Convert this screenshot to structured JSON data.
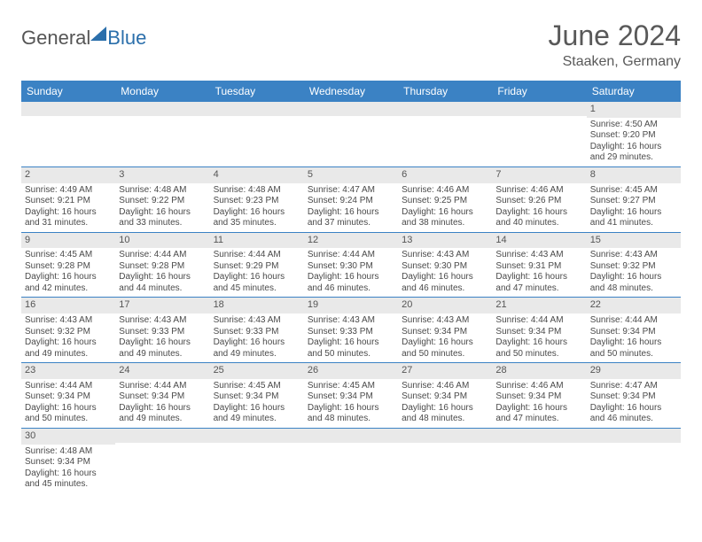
{
  "brand": {
    "text1": "General",
    "text2": "Blue"
  },
  "title": "June 2024",
  "location": "Staaken, Germany",
  "colors": {
    "header_bg": "#3b82c4",
    "daynum_bg": "#e9e9e9",
    "accent": "#2b6fab"
  },
  "day_headers": [
    "Sunday",
    "Monday",
    "Tuesday",
    "Wednesday",
    "Thursday",
    "Friday",
    "Saturday"
  ],
  "weeks": [
    [
      {
        "blank": true
      },
      {
        "blank": true
      },
      {
        "blank": true
      },
      {
        "blank": true
      },
      {
        "blank": true
      },
      {
        "blank": true
      },
      {
        "day": "1",
        "sunrise": "Sunrise: 4:50 AM",
        "sunset": "Sunset: 9:20 PM",
        "daylight": "Daylight: 16 hours and 29 minutes."
      }
    ],
    [
      {
        "day": "2",
        "sunrise": "Sunrise: 4:49 AM",
        "sunset": "Sunset: 9:21 PM",
        "daylight": "Daylight: 16 hours and 31 minutes."
      },
      {
        "day": "3",
        "sunrise": "Sunrise: 4:48 AM",
        "sunset": "Sunset: 9:22 PM",
        "daylight": "Daylight: 16 hours and 33 minutes."
      },
      {
        "day": "4",
        "sunrise": "Sunrise: 4:48 AM",
        "sunset": "Sunset: 9:23 PM",
        "daylight": "Daylight: 16 hours and 35 minutes."
      },
      {
        "day": "5",
        "sunrise": "Sunrise: 4:47 AM",
        "sunset": "Sunset: 9:24 PM",
        "daylight": "Daylight: 16 hours and 37 minutes."
      },
      {
        "day": "6",
        "sunrise": "Sunrise: 4:46 AM",
        "sunset": "Sunset: 9:25 PM",
        "daylight": "Daylight: 16 hours and 38 minutes."
      },
      {
        "day": "7",
        "sunrise": "Sunrise: 4:46 AM",
        "sunset": "Sunset: 9:26 PM",
        "daylight": "Daylight: 16 hours and 40 minutes."
      },
      {
        "day": "8",
        "sunrise": "Sunrise: 4:45 AM",
        "sunset": "Sunset: 9:27 PM",
        "daylight": "Daylight: 16 hours and 41 minutes."
      }
    ],
    [
      {
        "day": "9",
        "sunrise": "Sunrise: 4:45 AM",
        "sunset": "Sunset: 9:28 PM",
        "daylight": "Daylight: 16 hours and 42 minutes."
      },
      {
        "day": "10",
        "sunrise": "Sunrise: 4:44 AM",
        "sunset": "Sunset: 9:28 PM",
        "daylight": "Daylight: 16 hours and 44 minutes."
      },
      {
        "day": "11",
        "sunrise": "Sunrise: 4:44 AM",
        "sunset": "Sunset: 9:29 PM",
        "daylight": "Daylight: 16 hours and 45 minutes."
      },
      {
        "day": "12",
        "sunrise": "Sunrise: 4:44 AM",
        "sunset": "Sunset: 9:30 PM",
        "daylight": "Daylight: 16 hours and 46 minutes."
      },
      {
        "day": "13",
        "sunrise": "Sunrise: 4:43 AM",
        "sunset": "Sunset: 9:30 PM",
        "daylight": "Daylight: 16 hours and 46 minutes."
      },
      {
        "day": "14",
        "sunrise": "Sunrise: 4:43 AM",
        "sunset": "Sunset: 9:31 PM",
        "daylight": "Daylight: 16 hours and 47 minutes."
      },
      {
        "day": "15",
        "sunrise": "Sunrise: 4:43 AM",
        "sunset": "Sunset: 9:32 PM",
        "daylight": "Daylight: 16 hours and 48 minutes."
      }
    ],
    [
      {
        "day": "16",
        "sunrise": "Sunrise: 4:43 AM",
        "sunset": "Sunset: 9:32 PM",
        "daylight": "Daylight: 16 hours and 49 minutes."
      },
      {
        "day": "17",
        "sunrise": "Sunrise: 4:43 AM",
        "sunset": "Sunset: 9:33 PM",
        "daylight": "Daylight: 16 hours and 49 minutes."
      },
      {
        "day": "18",
        "sunrise": "Sunrise: 4:43 AM",
        "sunset": "Sunset: 9:33 PM",
        "daylight": "Daylight: 16 hours and 49 minutes."
      },
      {
        "day": "19",
        "sunrise": "Sunrise: 4:43 AM",
        "sunset": "Sunset: 9:33 PM",
        "daylight": "Daylight: 16 hours and 50 minutes."
      },
      {
        "day": "20",
        "sunrise": "Sunrise: 4:43 AM",
        "sunset": "Sunset: 9:34 PM",
        "daylight": "Daylight: 16 hours and 50 minutes."
      },
      {
        "day": "21",
        "sunrise": "Sunrise: 4:44 AM",
        "sunset": "Sunset: 9:34 PM",
        "daylight": "Daylight: 16 hours and 50 minutes."
      },
      {
        "day": "22",
        "sunrise": "Sunrise: 4:44 AM",
        "sunset": "Sunset: 9:34 PM",
        "daylight": "Daylight: 16 hours and 50 minutes."
      }
    ],
    [
      {
        "day": "23",
        "sunrise": "Sunrise: 4:44 AM",
        "sunset": "Sunset: 9:34 PM",
        "daylight": "Daylight: 16 hours and 50 minutes."
      },
      {
        "day": "24",
        "sunrise": "Sunrise: 4:44 AM",
        "sunset": "Sunset: 9:34 PM",
        "daylight": "Daylight: 16 hours and 49 minutes."
      },
      {
        "day": "25",
        "sunrise": "Sunrise: 4:45 AM",
        "sunset": "Sunset: 9:34 PM",
        "daylight": "Daylight: 16 hours and 49 minutes."
      },
      {
        "day": "26",
        "sunrise": "Sunrise: 4:45 AM",
        "sunset": "Sunset: 9:34 PM",
        "daylight": "Daylight: 16 hours and 48 minutes."
      },
      {
        "day": "27",
        "sunrise": "Sunrise: 4:46 AM",
        "sunset": "Sunset: 9:34 PM",
        "daylight": "Daylight: 16 hours and 48 minutes."
      },
      {
        "day": "28",
        "sunrise": "Sunrise: 4:46 AM",
        "sunset": "Sunset: 9:34 PM",
        "daylight": "Daylight: 16 hours and 47 minutes."
      },
      {
        "day": "29",
        "sunrise": "Sunrise: 4:47 AM",
        "sunset": "Sunset: 9:34 PM",
        "daylight": "Daylight: 16 hours and 46 minutes."
      }
    ],
    [
      {
        "day": "30",
        "sunrise": "Sunrise: 4:48 AM",
        "sunset": "Sunset: 9:34 PM",
        "daylight": "Daylight: 16 hours and 45 minutes."
      },
      {
        "blank": true
      },
      {
        "blank": true
      },
      {
        "blank": true
      },
      {
        "blank": true
      },
      {
        "blank": true
      },
      {
        "blank": true
      }
    ]
  ]
}
